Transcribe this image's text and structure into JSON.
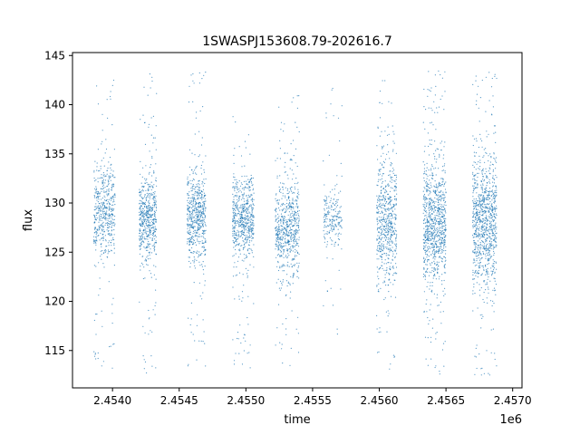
{
  "chart_data": {
    "type": "scatter",
    "title": "1SWASPJ153608.79-202616.7",
    "xlabel": "time",
    "ylabel": "flux",
    "x_offset_label": "1e6",
    "xlim": [
      2453700,
      2457070
    ],
    "ylim": [
      111.2,
      145.3
    ],
    "grid": false,
    "legend": "none",
    "x_ticks": [
      {
        "value": 2454000,
        "label": "2.4540"
      },
      {
        "value": 2454500,
        "label": "2.4545"
      },
      {
        "value": 2455000,
        "label": "2.4550"
      },
      {
        "value": 2455500,
        "label": "2.4555"
      },
      {
        "value": 2456000,
        "label": "2.4560"
      },
      {
        "value": 2456500,
        "label": "2.4565"
      },
      {
        "value": 2457000,
        "label": "2.4570"
      }
    ],
    "y_ticks": [
      {
        "value": 115,
        "label": "115"
      },
      {
        "value": 120,
        "label": "120"
      },
      {
        "value": 125,
        "label": "125"
      },
      {
        "value": 130,
        "label": "130"
      },
      {
        "value": 135,
        "label": "135"
      },
      {
        "value": 140,
        "label": "140"
      },
      {
        "value": 145,
        "label": "145"
      }
    ],
    "series": [
      {
        "color": "#1f77b4",
        "clusters": [
          {
            "t_min": 2453860,
            "t_max": 2454020,
            "flux_core": [
              124.5,
              133.5
            ],
            "flux_range": [
              113,
              143.5
            ],
            "points": 520
          },
          {
            "t_min": 2454200,
            "t_max": 2454330,
            "flux_core": [
              124.5,
              132.5
            ],
            "flux_range": [
              112.5,
              144
            ],
            "points": 560
          },
          {
            "t_min": 2454560,
            "t_max": 2454700,
            "flux_core": [
              124.5,
              133
            ],
            "flux_range": [
              113,
              143.5
            ],
            "points": 600
          },
          {
            "t_min": 2454900,
            "t_max": 2455060,
            "flux_core": [
              124.5,
              132.5
            ],
            "flux_range": [
              113,
              139
            ],
            "points": 620
          },
          {
            "t_min": 2455220,
            "t_max": 2455400,
            "flux_core": [
              123,
              132
            ],
            "flux_range": [
              113,
              141
            ],
            "points": 650
          },
          {
            "t_min": 2455580,
            "t_max": 2455720,
            "flux_core": [
              125.5,
              131.5
            ],
            "flux_range": [
              116,
              142
            ],
            "points": 220
          },
          {
            "t_min": 2455980,
            "t_max": 2456130,
            "flux_core": [
              122,
              134
            ],
            "flux_range": [
              113,
              143
            ],
            "points": 620
          },
          {
            "t_min": 2456330,
            "t_max": 2456500,
            "flux_core": [
              121.5,
              134.5
            ],
            "flux_range": [
              112.5,
              143.5
            ],
            "points": 900
          },
          {
            "t_min": 2456700,
            "t_max": 2456880,
            "flux_core": [
              122,
              134.5
            ],
            "flux_range": [
              112.5,
              143.5
            ],
            "points": 950
          }
        ]
      }
    ]
  }
}
